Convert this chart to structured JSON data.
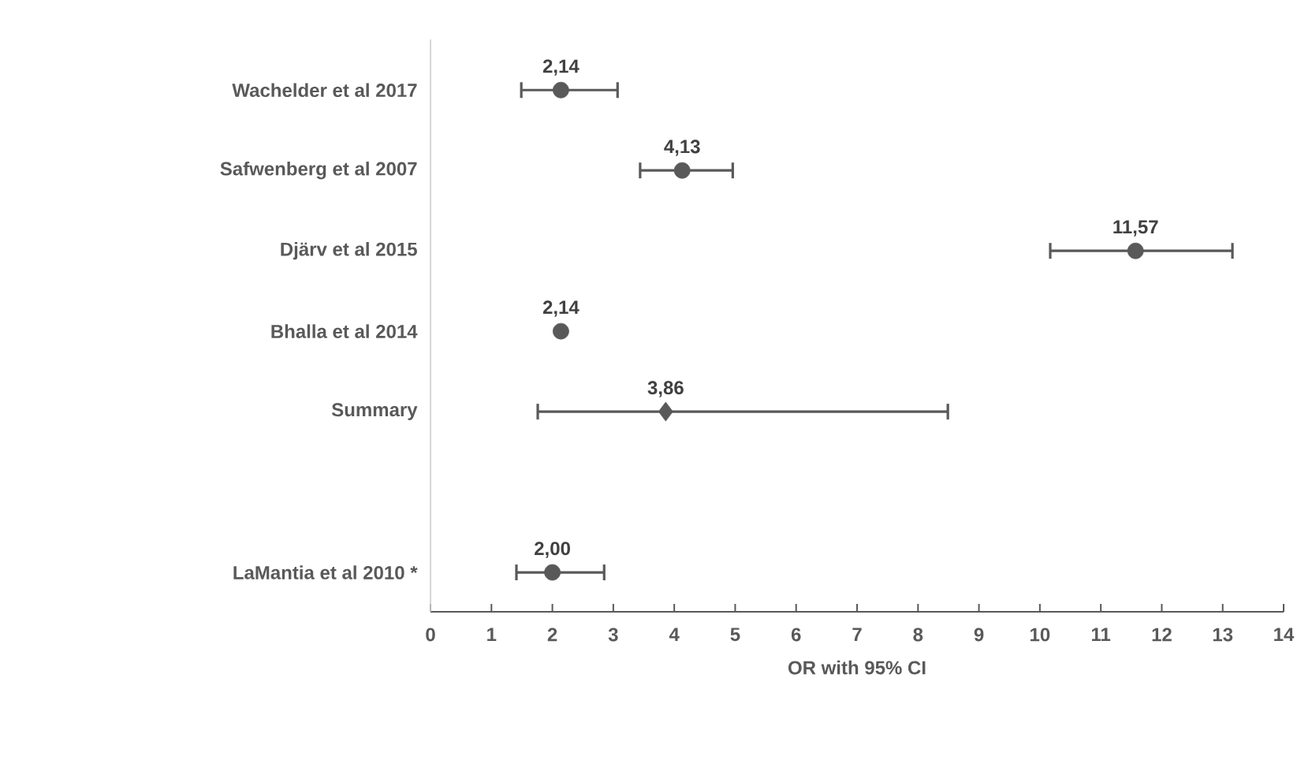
{
  "chart_data": {
    "type": "scatter",
    "orientation": "horizontal",
    "xlabel": "OR with 95% CI",
    "categories": [
      "Wachelder et al 2017",
      "Safwenberg et al 2007",
      "Djärv et al 2015",
      "Bhalla et al 2014",
      "Summary",
      null,
      "LaMantia et al 2010 *"
    ],
    "xlim": [
      0,
      14
    ],
    "xticks": [
      0,
      1,
      2,
      3,
      4,
      5,
      6,
      7,
      8,
      9,
      10,
      11,
      12,
      13,
      14
    ],
    "series": [
      {
        "color": "#595959",
        "marker": "circle",
        "values": [
          2.14,
          4.13,
          11.57,
          2.14,
          null,
          null,
          2.0
        ],
        "errors": [
          [
            1.49,
            3.07
          ],
          [
            3.44,
            4.96
          ],
          [
            10.17,
            13.16
          ],
          null,
          null,
          null,
          [
            1.41,
            2.85
          ]
        ],
        "value_labels": [
          "2,14",
          "4,13",
          "11,57",
          "2,14",
          null,
          null,
          "2,00"
        ]
      },
      {
        "color": "#595959",
        "marker": "diamond",
        "values": [
          null,
          null,
          null,
          null,
          3.86,
          null,
          null
        ],
        "errors": [
          null,
          null,
          null,
          null,
          [
            1.76,
            8.49
          ],
          null,
          null
        ],
        "value_labels": [
          null,
          null,
          null,
          null,
          "3,86",
          null,
          null
        ]
      }
    ]
  }
}
